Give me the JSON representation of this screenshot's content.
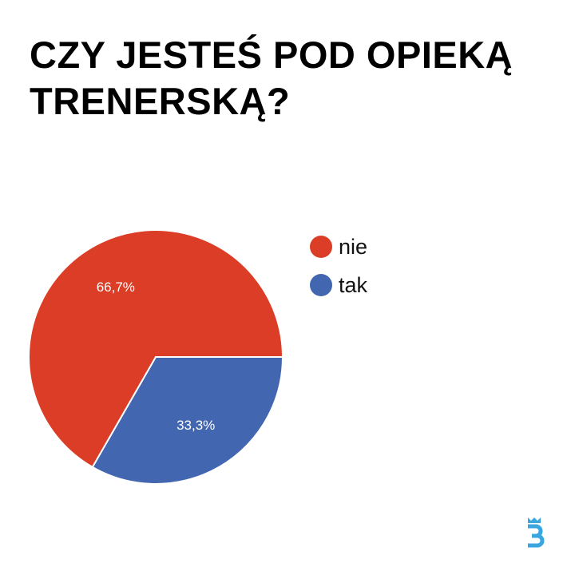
{
  "title": "CZY JESTEŚ POD OPIEKĄ TRENERSKĄ?",
  "colors": {
    "nie": "#dc3d26",
    "tak": "#4366b0",
    "logo": "#3aa6e0"
  },
  "logo": {
    "icon": "bracket-s-logo-icon"
  },
  "chart_data": {
    "type": "pie",
    "title": "CZY JESTEŚ POD OPIEKĄ TRENERSKĄ?",
    "categories": [
      "nie",
      "tak"
    ],
    "values": [
      66.7,
      33.3
    ],
    "data_labels": [
      "66,7%",
      "33,3%"
    ],
    "legend_position": "right"
  }
}
